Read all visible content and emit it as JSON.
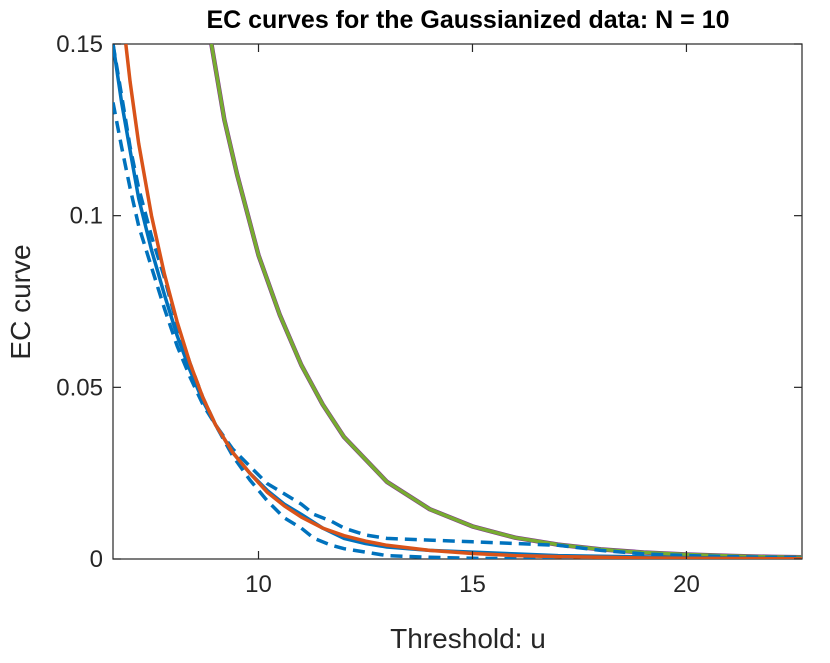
{
  "chart_data": {
    "type": "line",
    "title": "EC curves for the Gaussianized data: N = 10",
    "xlabel": "Threshold: u",
    "ylabel": "EC curve",
    "xlim": [
      6.6,
      22.7
    ],
    "ylim": [
      0,
      0.15
    ],
    "xticks": [
      10,
      15,
      20
    ],
    "xtick_labels": [
      "10",
      "15",
      "20"
    ],
    "yticks": [
      0,
      0.05,
      0.1,
      0.15
    ],
    "ytick_labels": [
      "0",
      "0.05",
      "0.1",
      "0.15"
    ],
    "grid": false,
    "legend": "none",
    "colors": {
      "blue": "#0072BD",
      "orange": "#D95319",
      "green": "#77AC30",
      "purple": "#7E2F8E",
      "axis": "#262626"
    },
    "series": [
      {
        "color": "#7E2F8E",
        "style": "solid",
        "x": [
          8.9,
          9.2,
          9.5,
          10,
          10.5,
          11,
          11.5,
          12,
          13,
          14,
          15,
          16,
          17,
          18,
          19,
          20,
          21,
          22,
          22.7
        ],
        "y": [
          0.15,
          0.128,
          0.112,
          0.0885,
          0.071,
          0.0565,
          0.045,
          0.0355,
          0.0225,
          0.0145,
          0.0095,
          0.0062,
          0.0042,
          0.0028,
          0.0019,
          0.0013,
          0.0009,
          0.0006,
          0.0005
        ]
      },
      {
        "color": "#77AC30",
        "style": "solid",
        "x": [
          8.9,
          9.2,
          9.5,
          10,
          10.5,
          11,
          11.5,
          12,
          13,
          14,
          15,
          16,
          17,
          18,
          19,
          20,
          21,
          22,
          22.7
        ],
        "y": [
          0.15,
          0.128,
          0.112,
          0.0885,
          0.071,
          0.0565,
          0.045,
          0.0355,
          0.0225,
          0.0145,
          0.0095,
          0.0062,
          0.0042,
          0.0028,
          0.0019,
          0.0013,
          0.0009,
          0.0006,
          0.0005
        ]
      },
      {
        "color": "#0072BD",
        "style": "dashed",
        "x": [
          6.6,
          6.8,
          7,
          7.2,
          7.5,
          7.8,
          8.1,
          8.4,
          8.7,
          9,
          9.4,
          9.8,
          10.2,
          10.6,
          11,
          11.3,
          11.7,
          12,
          12.5,
          13,
          14,
          15,
          16,
          17,
          18,
          19,
          20,
          21,
          22,
          22.7
        ],
        "y": [
          0.133,
          0.12,
          0.108,
          0.097,
          0.085,
          0.073,
          0.062,
          0.053,
          0.045,
          0.039,
          0.032,
          0.027,
          0.022,
          0.019,
          0.016,
          0.013,
          0.011,
          0.009,
          0.007,
          0.006,
          0.0055,
          0.005,
          0.0045,
          0.004,
          0.0025,
          0.0015,
          0.001,
          0.0007,
          0.0005,
          0.0004
        ]
      },
      {
        "color": "#0072BD",
        "style": "dashed",
        "x": [
          6.6,
          6.8,
          7,
          7.2,
          7.5,
          7.8,
          8.1,
          8.4,
          8.7,
          9,
          9.4,
          9.8,
          10.2,
          10.6,
          11,
          11.3,
          11.7,
          12,
          12.5,
          13,
          14,
          15,
          16,
          17,
          18,
          19,
          20,
          21,
          22,
          22.7
        ],
        "y": [
          0.15,
          0.135,
          0.12,
          0.108,
          0.094,
          0.082,
          0.068,
          0.057,
          0.047,
          0.039,
          0.03,
          0.023,
          0.017,
          0.012,
          0.009,
          0.006,
          0.004,
          0.003,
          0.002,
          0.001,
          0.0005,
          0.0002,
          0.0001,
          0.0001,
          0.0001,
          0.0001,
          0.0001,
          0.0001,
          0.0001,
          0.0001
        ]
      },
      {
        "color": "#0072BD",
        "style": "solid",
        "x": [
          6.6,
          6.8,
          7,
          7.2,
          7.5,
          7.8,
          8.1,
          8.4,
          8.7,
          9,
          9.4,
          9.8,
          10.2,
          10.6,
          11,
          11.5,
          12,
          12.5,
          13,
          14,
          15,
          16,
          17,
          18,
          19,
          20,
          21,
          22,
          22.7
        ],
        "y": [
          0.15,
          0.133,
          0.119,
          0.105,
          0.09,
          0.077,
          0.065,
          0.055,
          0.046,
          0.039,
          0.031,
          0.025,
          0.02,
          0.016,
          0.013,
          0.009,
          0.006,
          0.0045,
          0.0035,
          0.0025,
          0.002,
          0.0015,
          0.001,
          0.0008,
          0.0006,
          0.0004,
          0.0003,
          0.0002,
          0.0002
        ]
      },
      {
        "color": "#D95319",
        "style": "solid",
        "x": [
          6.9,
          7,
          7.2,
          7.5,
          7.8,
          8.1,
          8.4,
          8.7,
          9,
          9.4,
          9.8,
          10.2,
          10.6,
          11,
          11.5,
          12,
          12.5,
          13,
          14,
          15,
          16,
          17,
          18,
          19,
          20,
          21,
          22,
          22.7
        ],
        "y": [
          0.15,
          0.139,
          0.121,
          0.1,
          0.083,
          0.069,
          0.057,
          0.047,
          0.039,
          0.031,
          0.025,
          0.0195,
          0.0155,
          0.0122,
          0.009,
          0.0068,
          0.0052,
          0.004,
          0.0025,
          0.0016,
          0.001,
          0.0007,
          0.0005,
          0.0003,
          0.0002,
          0.00015,
          0.0001,
          0.0001
        ]
      }
    ]
  }
}
